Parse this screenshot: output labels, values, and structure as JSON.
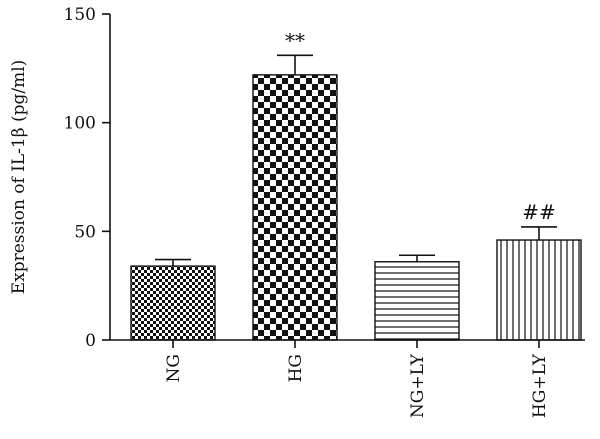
{
  "chart_data": {
    "type": "bar",
    "ylabel": "Expression of IL-1β (pg/ml)",
    "ylim": [
      0,
      150
    ],
    "yticks": [
      "0",
      "50",
      "100",
      "150"
    ],
    "categories": [
      "NG",
      "HG",
      "NG+LY",
      "HG+LY"
    ],
    "values": [
      34,
      122,
      36,
      46
    ],
    "errors": [
      3,
      9,
      3,
      6
    ],
    "annotations": [
      "",
      "**",
      "",
      "##"
    ],
    "patterns": [
      "small-checker",
      "large-checker",
      "horizontal-lines",
      "vertical-lines"
    ]
  }
}
